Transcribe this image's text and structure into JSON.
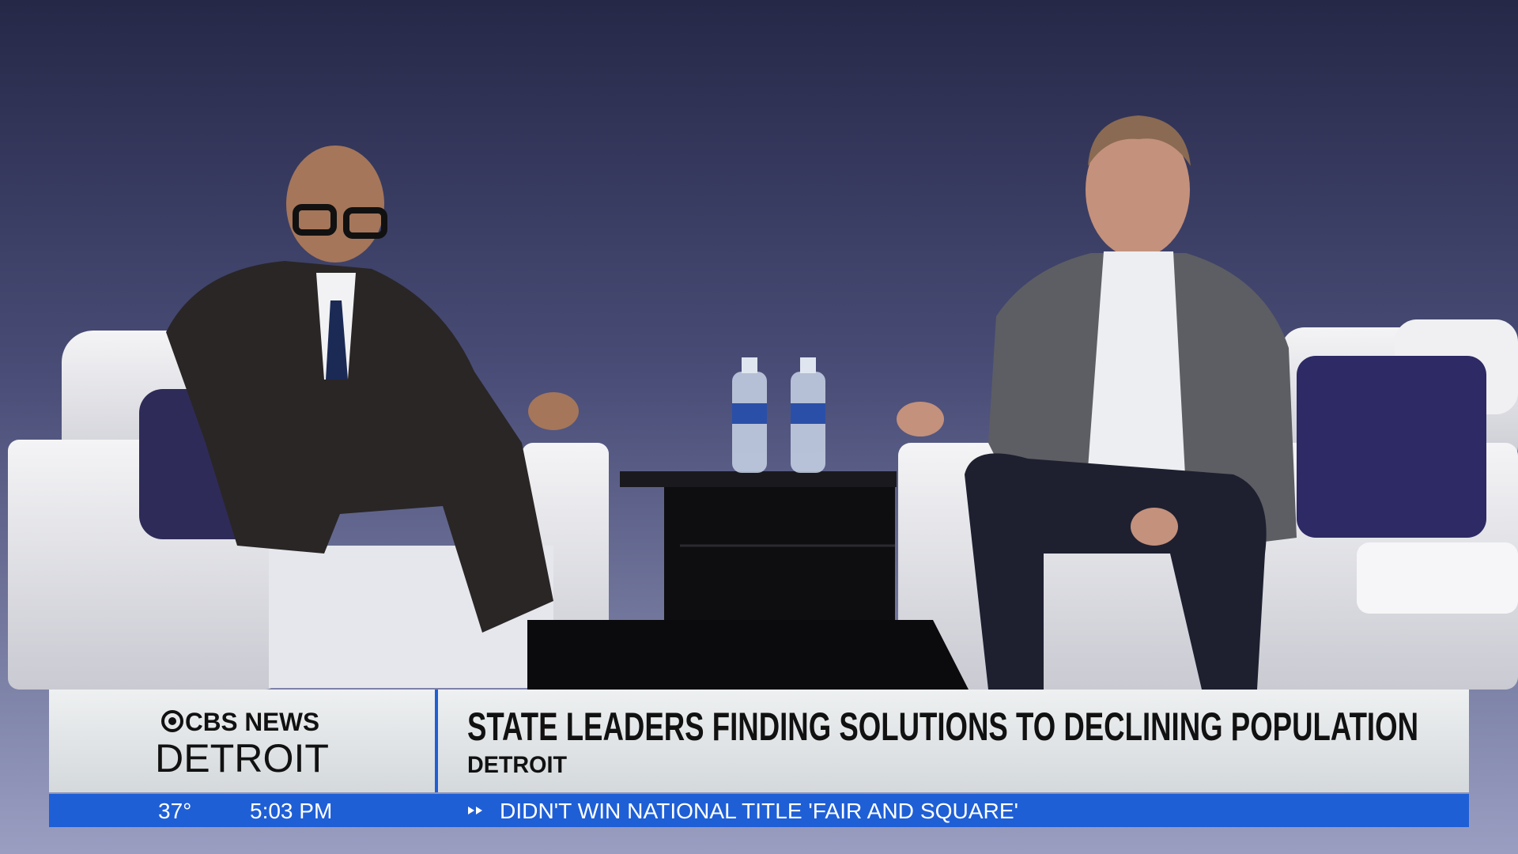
{
  "lower_third": {
    "logo": {
      "network": "CBS NEWS",
      "station": "DETROIT"
    },
    "headline": "STATE LEADERS FINDING SOLUTIONS TO DECLINING POPULATION",
    "location": "DETROIT"
  },
  "ticker": {
    "temperature": "37°",
    "time": "5:03 PM",
    "text": "DIDN'T WIN NATIONAL TITLE 'FAIR AND SQUARE'"
  }
}
